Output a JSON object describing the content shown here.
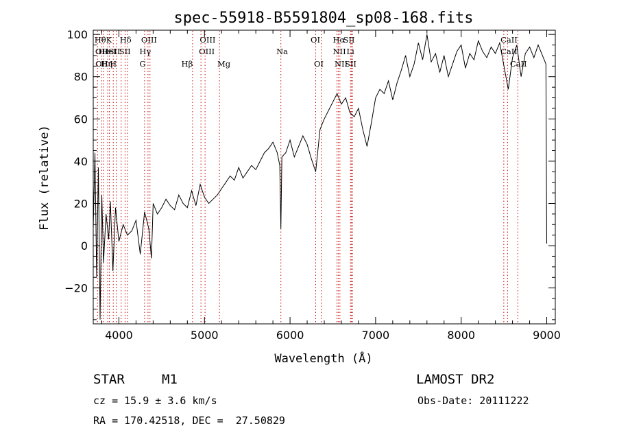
{
  "chart_data": {
    "type": "line",
    "title": "spec-55918-B5591804_sp08-168.fits",
    "xlabel": "Wavelength (Å)",
    "ylabel": "Flux (relative)",
    "xlim": [
      3700,
      9100
    ],
    "ylim": [
      -37,
      102
    ],
    "xticks": [
      4000,
      5000,
      6000,
      7000,
      8000,
      9000
    ],
    "yticks": [
      -20,
      0,
      20,
      40,
      60,
      80,
      100
    ],
    "grid": false,
    "line_color": "#000000",
    "marker_color": "#cc0000",
    "series": [
      {
        "x": [
          3700,
          3720,
          3740,
          3760,
          3780,
          3800,
          3820,
          3850,
          3880,
          3900,
          3930,
          3960,
          4000,
          4050,
          4100,
          4150,
          4200,
          4250,
          4300,
          4350,
          4380,
          4400,
          4450,
          4500,
          4550,
          4600,
          4650,
          4700,
          4750,
          4800,
          4850,
          4900,
          4950,
          5000,
          5050,
          5100,
          5150,
          5200,
          5250,
          5300,
          5350,
          5400,
          5450,
          5500,
          5550,
          5600,
          5650,
          5700,
          5750,
          5800,
          5850,
          5880,
          5893,
          5905,
          5950,
          6000,
          6050,
          6100,
          6150,
          6200,
          6250,
          6300,
          6350,
          6400,
          6450,
          6500,
          6550,
          6600,
          6650,
          6700,
          6750,
          6800,
          6850,
          6900,
          6950,
          7000,
          7050,
          7100,
          7150,
          7200,
          7250,
          7300,
          7350,
          7400,
          7450,
          7500,
          7550,
          7600,
          7650,
          7700,
          7750,
          7800,
          7850,
          7900,
          7950,
          8000,
          8050,
          8100,
          8150,
          8200,
          8250,
          8300,
          8350,
          8400,
          8450,
          8500,
          8550,
          8600,
          8650,
          8700,
          8750,
          8800,
          8850,
          8900,
          8950,
          8990,
          9000
        ],
        "y": [
          8,
          44,
          -15,
          37,
          -35,
          24,
          -8,
          15,
          3,
          21,
          -12,
          18,
          2,
          10,
          5,
          7,
          12,
          -4,
          16,
          8,
          -6,
          20,
          15,
          18,
          22,
          19,
          17,
          24,
          20,
          18,
          26,
          19,
          29,
          23,
          20,
          22,
          24,
          27,
          30,
          33,
          31,
          37,
          32,
          35,
          38,
          36,
          40,
          44,
          46,
          49,
          44,
          38,
          8,
          42,
          44,
          50,
          42,
          47,
          52,
          48,
          41,
          35,
          55,
          60,
          64,
          68,
          72,
          67,
          70,
          63,
          61,
          65,
          55,
          47,
          58,
          70,
          74,
          72,
          78,
          69,
          77,
          83,
          90,
          80,
          86,
          96,
          88,
          100,
          87,
          91,
          82,
          90,
          80,
          86,
          92,
          95,
          84,
          91,
          88,
          97,
          92,
          89,
          94,
          91,
          96,
          85,
          74,
          89,
          95,
          80,
          91,
          94,
          89,
          95,
          90,
          86,
          1
        ]
      }
    ],
    "line_markers": [
      {
        "w": 3750,
        "top": "Hθ",
        "bot": ""
      },
      {
        "w": 3797,
        "top": "",
        "bot": "Hη"
      },
      {
        "w": 3820,
        "top": "",
        "bot": ""
      },
      {
        "w": 3869,
        "top": "",
        "bot": ""
      },
      {
        "w": 3889,
        "top": "",
        "bot": ""
      },
      {
        "w": 3934,
        "top": "K",
        "bot": ""
      },
      {
        "w": 3969,
        "top": "",
        "bot": "H"
      },
      {
        "w": 4026,
        "top": "",
        "bot": ""
      },
      {
        "w": 4072,
        "top": "",
        "bot": ""
      },
      {
        "w": 4102,
        "top": "Hδ",
        "bot": ""
      },
      {
        "w": 4300,
        "top": "",
        "bot": "G"
      },
      {
        "w": 4340,
        "top": "",
        "bot": ""
      },
      {
        "w": 4363,
        "top": "OIII",
        "bot": ""
      },
      {
        "w": 4861,
        "top": "",
        "bot": "Hβ"
      },
      {
        "w": 4959,
        "top": "",
        "bot": ""
      },
      {
        "w": 5007,
        "top": "OIII",
        "bot": ""
      },
      {
        "w": 5175,
        "top": "",
        "bot": "Mg"
      },
      {
        "w": 5893,
        "top": "",
        "bot": ""
      },
      {
        "w": 6300,
        "top": "OI",
        "bot": ""
      },
      {
        "w": 6364,
        "top": "",
        "bot": "OI"
      },
      {
        "w": 6548,
        "top": "",
        "bot": ""
      },
      {
        "w": 6563,
        "top": "Hα",
        "bot": ""
      },
      {
        "w": 6583,
        "top": "",
        "bot": ""
      },
      {
        "w": 6707,
        "top": "",
        "bot": ""
      },
      {
        "w": 6716,
        "top": "",
        "bot": ""
      },
      {
        "w": 6731,
        "top": "SII",
        "bot": ""
      },
      {
        "w": 8498,
        "top": "CaII",
        "bot": ""
      },
      {
        "w": 8542,
        "top": "",
        "bot": ""
      },
      {
        "w": 8662,
        "top": "",
        "bot": ""
      }
    ],
    "line_labels": [
      {
        "w": 3714,
        "row": 0,
        "text": "Hθ"
      },
      {
        "w": 3723,
        "row": 1,
        "text": "OII"
      },
      {
        "w": 3725,
        "row": 2,
        "text": "OII"
      },
      {
        "w": 3760,
        "row": 1,
        "text": "He"
      },
      {
        "w": 3790,
        "row": 2,
        "text": "Hη"
      },
      {
        "w": 3800,
        "row": 1,
        "text": "HeI"
      },
      {
        "w": 3850,
        "row": 0,
        "text": "K"
      },
      {
        "w": 3880,
        "row": 1,
        "text": "SII"
      },
      {
        "w": 3893,
        "row": 2,
        "text": "H"
      },
      {
        "w": 4010,
        "row": 0,
        "text": "Hδ"
      },
      {
        "w": 4002,
        "row": 1,
        "text": "SII"
      },
      {
        "w": 4260,
        "row": 0,
        "text": "OIII"
      },
      {
        "w": 4240,
        "row": 1,
        "text": "Hγ"
      },
      {
        "w": 4240,
        "row": 2,
        "text": "G"
      },
      {
        "w": 4945,
        "row": 0,
        "text": "OIII"
      },
      {
        "w": 4935,
        "row": 1,
        "text": "OIII"
      },
      {
        "w": 4730,
        "row": 2,
        "text": "Hβ"
      },
      {
        "w": 5150,
        "row": 2,
        "text": "Mg"
      },
      {
        "w": 5840,
        "row": 1,
        "text": "Na"
      },
      {
        "w": 6240,
        "row": 0,
        "text": "OI"
      },
      {
        "w": 6280,
        "row": 2,
        "text": "OI"
      },
      {
        "w": 6500,
        "row": 0,
        "text": "Hα"
      },
      {
        "w": 6620,
        "row": 0,
        "text": "SII"
      },
      {
        "w": 6500,
        "row": 1,
        "text": "NII"
      },
      {
        "w": 6660,
        "row": 1,
        "text": "Li"
      },
      {
        "w": 6520,
        "row": 2,
        "text": "NII"
      },
      {
        "w": 6640,
        "row": 2,
        "text": "SII"
      },
      {
        "w": 8460,
        "row": 0,
        "text": "CaII"
      },
      {
        "w": 8460,
        "row": 1,
        "text": "CaII"
      },
      {
        "w": 8570,
        "row": 2,
        "text": "CaII"
      }
    ]
  },
  "info": {
    "class": "STAR",
    "subclass": "M1",
    "survey": "LAMOST DR2",
    "cz": "cz = 15.9 ± 3.6 km/s",
    "obs_date": "Obs-Date: 20111222",
    "coords": "RA = 170.42518, DEC =  27.50829"
  }
}
